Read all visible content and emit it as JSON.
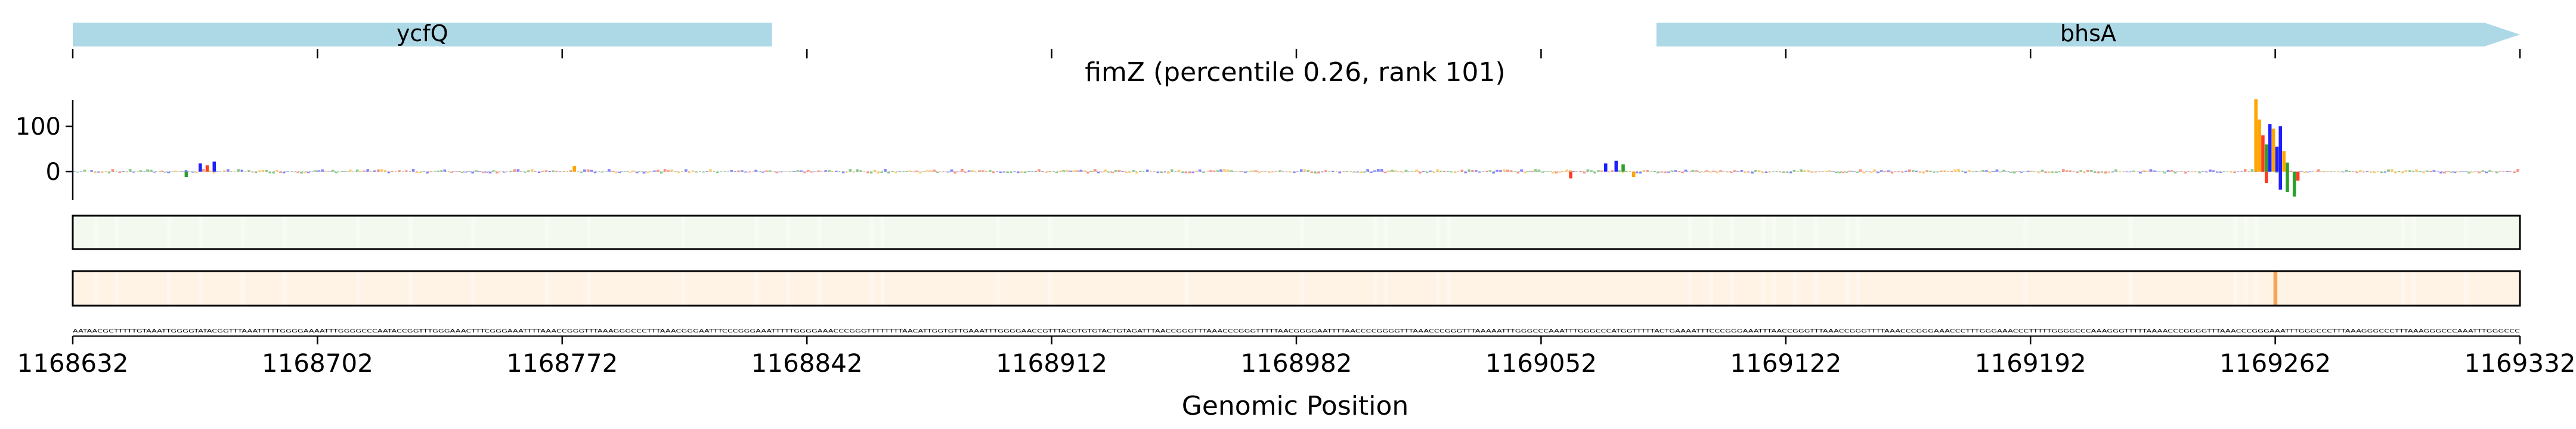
{
  "chart_data": {
    "type": "genome_track",
    "title": "fimZ (percentile 0.26, rank 101)",
    "xlabel": "Genomic Position",
    "ylabel": "",
    "xlim": [
      1168632,
      1169332
    ],
    "x_ticks": [
      {
        "value": 1168632,
        "label": "1168632"
      },
      {
        "value": 1168702,
        "label": "1168702"
      },
      {
        "value": 1168772,
        "label": "1168772"
      },
      {
        "value": 1168842,
        "label": "1168842"
      },
      {
        "value": 1168912,
        "label": "1168912"
      },
      {
        "value": 1168982,
        "label": "1168982"
      },
      {
        "value": 1169052,
        "label": "1169052"
      },
      {
        "value": 1169122,
        "label": "1169122"
      },
      {
        "value": 1169192,
        "label": "1169192"
      },
      {
        "value": 1169262,
        "label": "1169262"
      },
      {
        "value": 1169332,
        "label": "1169332"
      }
    ],
    "genes": [
      {
        "name": "ycfQ",
        "start": 1168632,
        "end": 1168832,
        "strand": "-",
        "color": "#add8e6"
      },
      {
        "name": "bhsA",
        "start": 1169085,
        "end": 1169332,
        "strand": "+",
        "color": "#add8e6"
      }
    ],
    "attribution_track": {
      "ylim": [
        -60,
        170
      ],
      "y_ticks": [
        {
          "value": 100,
          "label": "100"
        },
        {
          "value": 0,
          "label": "0"
        }
      ],
      "base_colors": {
        "A": "#2ca02c",
        "C": "#1f1fff",
        "G": "#ffa500",
        "T": "#ff3b1f"
      },
      "peaks": [
        {
          "x": 1169256,
          "y": 160,
          "base": "G"
        },
        {
          "x": 1169257,
          "y": 115,
          "base": "G"
        },
        {
          "x": 1169258,
          "y": 80,
          "base": "T"
        },
        {
          "x": 1169259,
          "y": 60,
          "base": "A"
        },
        {
          "x": 1169260,
          "y": 105,
          "base": "C"
        },
        {
          "x": 1169261,
          "y": 95,
          "base": "G"
        },
        {
          "x": 1169262,
          "y": 55,
          "base": "C"
        },
        {
          "x": 1169263,
          "y": 100,
          "base": "C"
        },
        {
          "x": 1169264,
          "y": 45,
          "base": "G"
        },
        {
          "x": 1169265,
          "y": 20,
          "base": "A"
        },
        {
          "x": 1169259,
          "y": -25,
          "base": "T"
        },
        {
          "x": 1169263,
          "y": -40,
          "base": "C"
        },
        {
          "x": 1169265,
          "y": -45,
          "base": "A"
        },
        {
          "x": 1169267,
          "y": -55,
          "base": "A"
        },
        {
          "x": 1169268,
          "y": -20,
          "base": "T"
        },
        {
          "x": 1168668,
          "y": 18,
          "base": "C"
        },
        {
          "x": 1168670,
          "y": 14,
          "base": "T"
        },
        {
          "x": 1168672,
          "y": 22,
          "base": "C"
        },
        {
          "x": 1168664,
          "y": -12,
          "base": "A"
        },
        {
          "x": 1168775,
          "y": 12,
          "base": "G"
        },
        {
          "x": 1169060,
          "y": -15,
          "base": "T"
        },
        {
          "x": 1169070,
          "y": 18,
          "base": "C"
        },
        {
          "x": 1169073,
          "y": 24,
          "base": "C"
        },
        {
          "x": 1169075,
          "y": 16,
          "base": "A"
        },
        {
          "x": 1169078,
          "y": -12,
          "base": "G"
        }
      ]
    },
    "heatmap_tracks": [
      {
        "name": "track_1",
        "base_color": "#f3f9ef",
        "highlights": []
      },
      {
        "name": "track_2",
        "base_color": "#fff3e5",
        "highlights": [
          {
            "x": 1169262,
            "color": "#f6a557"
          }
        ]
      }
    ],
    "sequence": "AATAACGCTTTTTGTAAATTGGGGTATACGGTTTAAATTTTTGGGGAAAATTTGGGGCCCAATACCGGTTTGGGAAACTTTCGGGAAATTTTAAACCGGGTTTAAAGGGCCCTTTAAACGGGAATTTCCCGGGAAATTTTTGGGGAAACCCGGGTTTTTTTTAACATTGGTGTTGAAATTTGGGGAACCGTTTACGTGTGTACTGTAGATTTAACCGGGTTTAAACCCGGGTTTTTAACGGGGAATTTTAACCCCGGGGTTTAAACCCGGGTTTAAAAATTTGGGCCCAAATTTGGGCCCATGGTTTTTACTGAAAATTTCCCGGGAAATTTAACCGGGTTTAAACCGGGTTTTAAACCCGGGAAACCCTTTGGGAAACCCTTTTTGGGGCCCAAAGGGTTTTTAAAACCCGGGGTTTAAACCCGGGAAATTTGGGCCCTTTAAAGGGCCCTTTAAAGGGCCCAAATTTGGGCCC"
  }
}
